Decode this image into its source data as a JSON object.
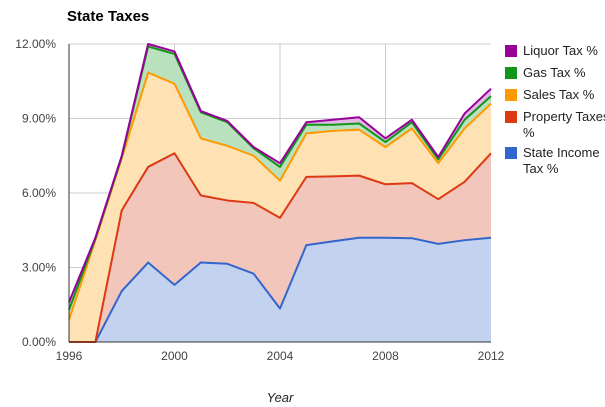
{
  "chart_data": {
    "type": "area",
    "stacked": true,
    "title": "State Taxes",
    "xlabel": "Year",
    "ylabel": "",
    "x": [
      1996,
      1997,
      1998,
      1999,
      2000,
      2001,
      2002,
      2003,
      2004,
      2005,
      2006,
      2007,
      2008,
      2009,
      2010,
      2011,
      2012
    ],
    "xticks": [
      "1996",
      "2000",
      "2004",
      "2008",
      "2012"
    ],
    "yticks": [
      "0.00%",
      "3.00%",
      "6.00%",
      "9.00%",
      "12.00%"
    ],
    "ylim": [
      0,
      12
    ],
    "grid": true,
    "legend_position": "right",
    "series": [
      {
        "name": "State Income Tax %",
        "color": "#3366cc",
        "fill": "#c0d0ee",
        "values": [
          0,
          0,
          2.05,
          3.2,
          2.3,
          3.2,
          3.15,
          2.75,
          1.35,
          3.9,
          4.05,
          4.2,
          4.2,
          4.18,
          3.95,
          4.1,
          4.2
        ]
      },
      {
        "name": "Property Taxes %",
        "color": "#dc3912",
        "fill": "#f2c3b8",
        "values": [
          0,
          0,
          3.25,
          3.85,
          5.3,
          2.7,
          2.55,
          2.85,
          3.65,
          2.75,
          2.62,
          2.5,
          2.15,
          2.22,
          1.8,
          2.35,
          3.4
        ]
      },
      {
        "name": "Sales Tax %",
        "color": "#ff9900",
        "fill": "#ffe0b0",
        "values": [
          0.9,
          4.1,
          2.1,
          3.8,
          2.8,
          2.3,
          2.2,
          1.9,
          1.5,
          1.75,
          1.83,
          1.85,
          1.5,
          2.2,
          1.45,
          2.15,
          2.0
        ]
      },
      {
        "name": "Gas Tax %",
        "color": "#109618",
        "fill": "#b5dfbb",
        "values": [
          0.4,
          0.05,
          0.05,
          1.05,
          1.2,
          1.05,
          0.95,
          0.3,
          0.55,
          0.35,
          0.25,
          0.25,
          0.2,
          0.25,
          0.15,
          0.35,
          0.3
        ]
      },
      {
        "name": "Liquor Tax %",
        "color": "#990099",
        "fill": "#e0b5e0",
        "values": [
          0.3,
          0.05,
          0.05,
          0.1,
          0.1,
          0.05,
          0.05,
          0.05,
          0.15,
          0.1,
          0.2,
          0.25,
          0.15,
          0.1,
          0.1,
          0.25,
          0.3
        ]
      }
    ]
  }
}
